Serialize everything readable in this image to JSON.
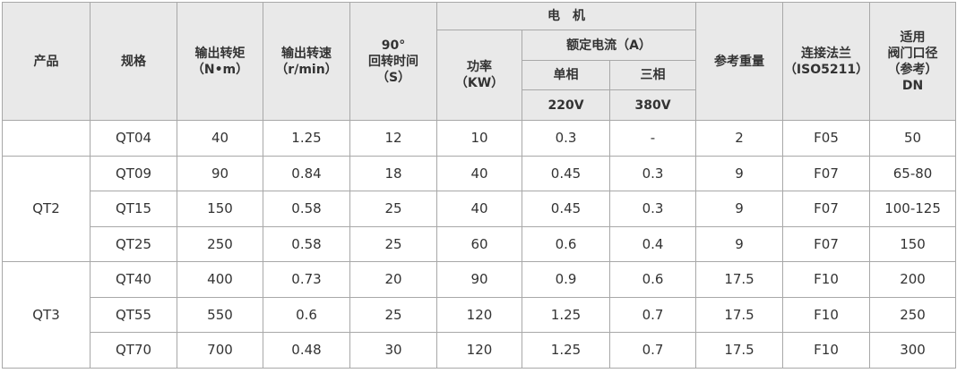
{
  "header": {
    "product": "产品",
    "spec": "规格",
    "torque": [
      "输出转矩",
      "（N•m）"
    ],
    "speed": [
      "输出转速",
      "（r/min）"
    ],
    "time": [
      "90°",
      "回转时间",
      "（S）"
    ],
    "motor": "电机",
    "power": [
      "功率",
      "（KW）"
    ],
    "current": "额定电流（A）",
    "single": "单相",
    "three": "三相",
    "v220": "220V",
    "v380": "380V",
    "weight": "参考重量",
    "flange": [
      "连接法兰",
      "（ISO5211）"
    ],
    "valve": [
      "适用",
      "阀门口径",
      "（参考）",
      "DN"
    ]
  },
  "table": {
    "groups": [
      {
        "rows": [
          [
            "QT04",
            "40",
            "1.25",
            "12",
            "10",
            "0.3",
            "-",
            "2",
            "F05",
            "50"
          ]
        ]
      },
      {
        "product": "QT2",
        "rows": [
          [
            "QT09",
            "90",
            "0.84",
            "18",
            "40",
            "0.45",
            "0.3",
            "9",
            "F07",
            "65-80"
          ],
          [
            "QT15",
            "150",
            "0.58",
            "25",
            "40",
            "0.45",
            "0.3",
            "9",
            "F07",
            "100-125"
          ],
          [
            "QT25",
            "250",
            "0.58",
            "25",
            "60",
            "0.6",
            "0.4",
            "9",
            "F07",
            "150"
          ]
        ]
      },
      {
        "product": "QT3",
        "rows": [
          [
            "QT40",
            "400",
            "0.73",
            "20",
            "90",
            "0.9",
            "0.6",
            "17.5",
            "F10",
            "200"
          ],
          [
            "QT55",
            "550",
            "0.6",
            "25",
            "120",
            "1.25",
            "0.7",
            "17.5",
            "F10",
            "250"
          ],
          [
            "QT70",
            "700",
            "0.48",
            "30",
            "120",
            "1.25",
            "0.7",
            "17.5",
            "F10",
            "300"
          ]
        ]
      }
    ]
  }
}
